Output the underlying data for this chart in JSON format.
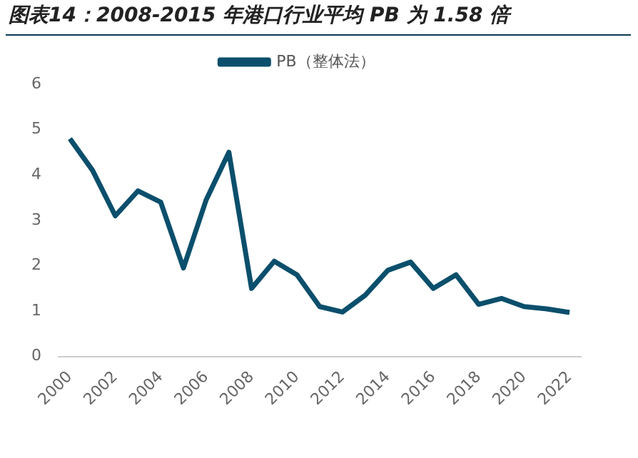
{
  "chart_data": {
    "type": "line",
    "title": "图表14：2008-2015 年港口行业平均 PB 为 1.58 倍",
    "categories": [
      "2000",
      null,
      "2002",
      null,
      "2004",
      null,
      "2006",
      null,
      "2008",
      null,
      "2010",
      null,
      "2012",
      null,
      "2014",
      null,
      "2016",
      null,
      "2018",
      null,
      "2020",
      null,
      "2022"
    ],
    "series": [
      {
        "name": "PB（整体法）",
        "color": "#0b4f6c",
        "values": [
          4.8,
          4.1,
          3.1,
          3.65,
          3.4,
          1.95,
          3.45,
          4.5,
          1.5,
          2.1,
          1.8,
          1.1,
          0.98,
          1.35,
          1.9,
          2.08,
          1.5,
          1.8,
          1.15,
          1.28,
          1.1,
          1.05,
          0.97
        ]
      }
    ],
    "ylim": [
      0,
      6
    ],
    "yticks": [
      0,
      1,
      2,
      3,
      4,
      5,
      6
    ],
    "grid": false,
    "legend": "top",
    "marker": "none",
    "line_style": "solid"
  }
}
